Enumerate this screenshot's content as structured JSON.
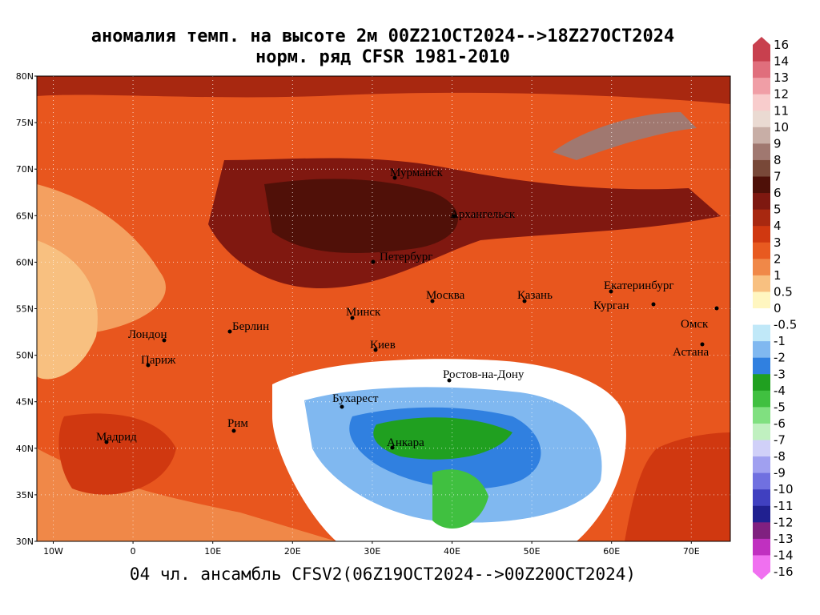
{
  "header": {
    "title_lines": [
      "аномалия темп. на высоте 2м 00Z21OCT2024-->18Z27OCT2024",
      "норм. ряд CFSR 1981-2010"
    ]
  },
  "map": {
    "lat_ticks": [
      "80N",
      "75N",
      "70N",
      "65N",
      "60N",
      "55N",
      "50N",
      "45N",
      "40N",
      "35N",
      "30N"
    ],
    "lon_ticks": [
      "10W",
      "0",
      "10E",
      "20E",
      "30E",
      "40E",
      "50E",
      "60E",
      "70E"
    ],
    "cities": [
      "Мурманск",
      "Архангельск",
      "Петербург",
      "Москва",
      "Казань",
      "Екатеринбург",
      "Курган",
      "Омск",
      "Астана",
      "Минск",
      "Берлин",
      "Лондон",
      "Париж",
      "Киев",
      "Ростов-на-Дону",
      "Бухарест",
      "Рим",
      "Мадрид",
      "Анкара"
    ]
  },
  "colorbar": {
    "labels": [
      16,
      14,
      13,
      12,
      11,
      10,
      9,
      8,
      7,
      6,
      5,
      4,
      3,
      2,
      1,
      0.5,
      0,
      -0.5,
      -1,
      -2,
      -3,
      -4,
      -5,
      -6,
      -7,
      -8,
      -9,
      -10,
      -11,
      -12,
      -13,
      -14,
      -16
    ],
    "colors": [
      "#c8404e",
      "#e06e7c",
      "#f09ea6",
      "#f8cccc",
      "#eadad2",
      "#c8aea6",
      "#a07870",
      "#784838",
      "#4e1008",
      "#7e1810",
      "#a82810",
      "#d03810",
      "#e85a20",
      "#f08848",
      "#f8c080",
      "#fff6c0",
      "#ffffff",
      "#c0e8f8",
      "#80b8f0",
      "#3080e0",
      "#20a020",
      "#40c040",
      "#80e080",
      "#c0f0c0",
      "#d0d0f8",
      "#a0a0f0",
      "#7070e0",
      "#4040c0",
      "#202090",
      "#802080",
      "#c030c0",
      "#f070f0"
    ]
  },
  "footer": "04 чл. ансамбль CFSV2(06Z19OCT2024-->00Z20OCT2024)"
}
